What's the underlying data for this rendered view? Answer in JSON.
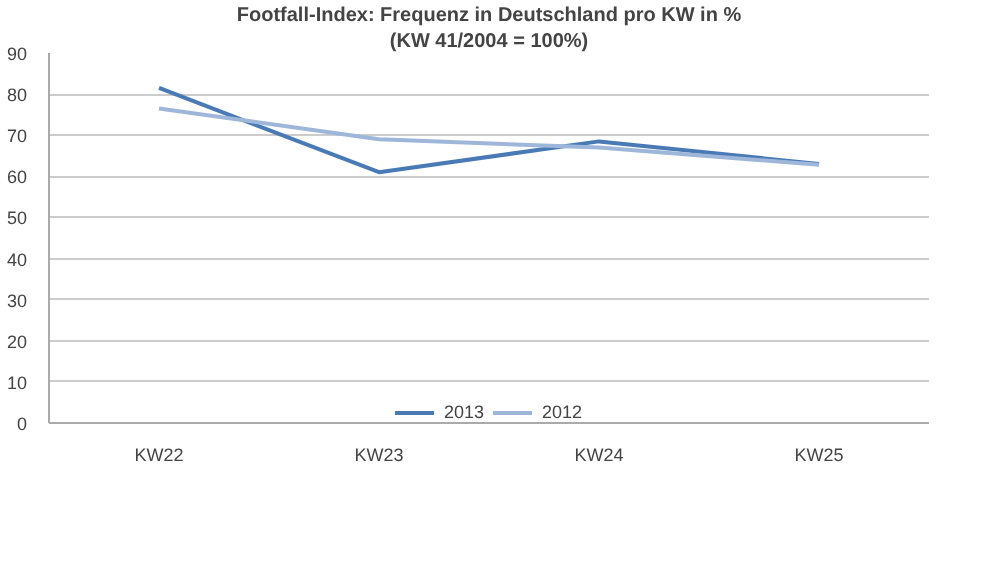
{
  "chart_data": {
    "type": "line",
    "title": "Footfall-Index: Frequenz in Deutschland pro KW in %",
    "subtitle": "(KW 41/2004 = 100%)",
    "categories": [
      "KW22",
      "KW23",
      "KW24",
      "KW25"
    ],
    "series": [
      {
        "name": "2013",
        "color": "#4a7ab5",
        "values": [
          81.5,
          61,
          68.5,
          63
        ]
      },
      {
        "name": "2012",
        "color": "#9db6d9",
        "values": [
          76.5,
          69,
          67,
          62.8
        ]
      }
    ],
    "ylim": [
      0,
      90
    ],
    "yticks": [
      0,
      10,
      20,
      30,
      40,
      50,
      60,
      70,
      80,
      90
    ],
    "grid": "y",
    "legend": "bottom",
    "marker": "none",
    "line_style": "solid"
  }
}
